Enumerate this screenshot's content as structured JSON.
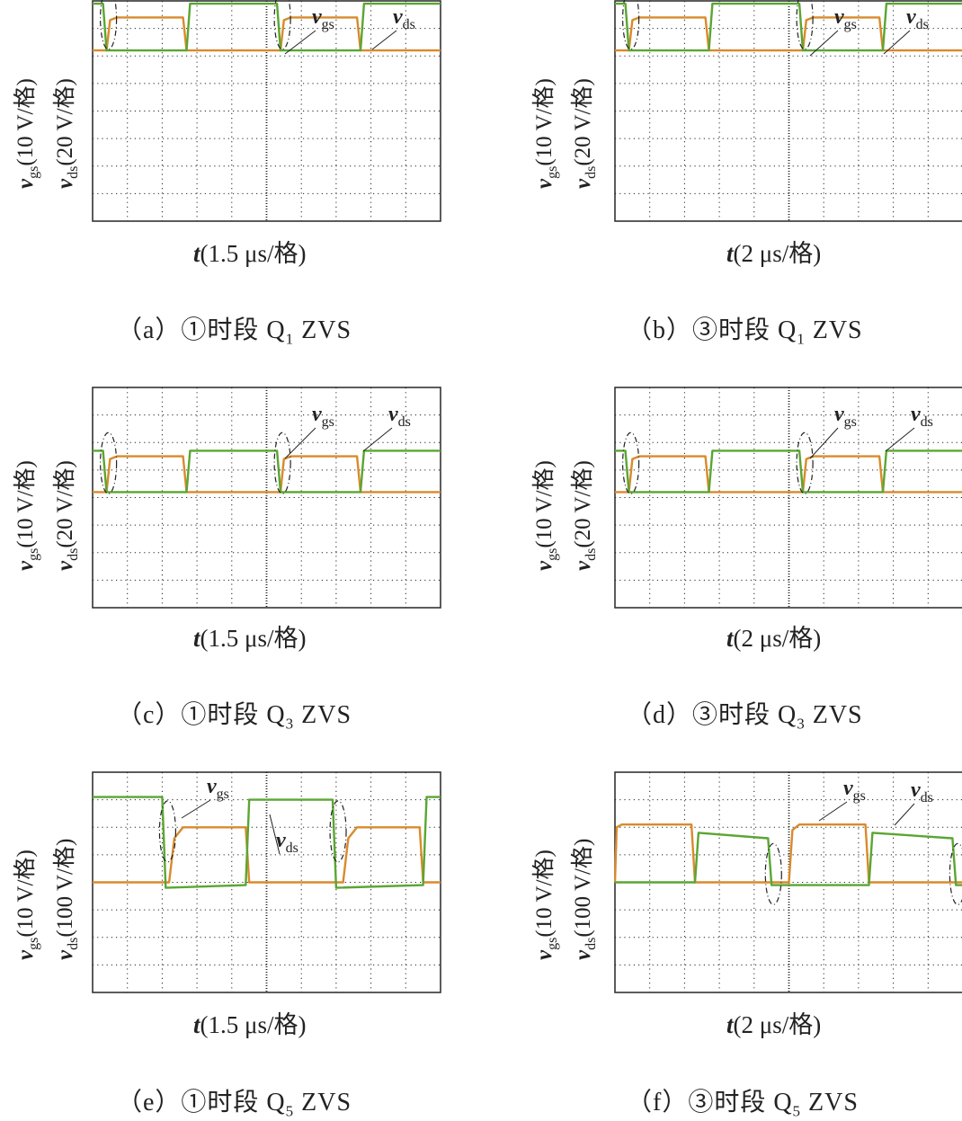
{
  "colors": {
    "vgs": "#d98a2b",
    "vds": "#5aa632",
    "grid": "#222222"
  },
  "labels": {
    "vgs_symbol": "v",
    "vgs_sub": "gs",
    "vds_symbol": "v",
    "vds_sub": "ds",
    "t_symbol": "t"
  },
  "panels": [
    {
      "id": "a",
      "caption_prefix": "（a）①时段 Q",
      "caption_sub": "1",
      "caption_suffix": " ZVS",
      "y1_unit": "(10 V/格)",
      "y2_unit": "(20 V/格)",
      "x_unit": "(1.5 μs/格)"
    },
    {
      "id": "b",
      "caption_prefix": "（b）③时段 Q",
      "caption_sub": "1",
      "caption_suffix": " ZVS",
      "y1_unit": "(10 V/格)",
      "y2_unit": "(20 V/格)",
      "x_unit": "(2 μs/格)"
    },
    {
      "id": "c",
      "caption_prefix": "（c）①时段 Q",
      "caption_sub": "3",
      "caption_suffix": " ZVS",
      "y1_unit": "(10 V/格)",
      "y2_unit": "(20 V/格)",
      "x_unit": "(1.5 μs/格)"
    },
    {
      "id": "d",
      "caption_prefix": "（d）③时段 Q",
      "caption_sub": "3",
      "caption_suffix": " ZVS",
      "y1_unit": "(10 V/格)",
      "y2_unit": "(20 V/格)",
      "x_unit": "(2 μs/格)"
    },
    {
      "id": "e",
      "caption_prefix": "（e）①时段 Q",
      "caption_sub": "5",
      "caption_suffix": " ZVS",
      "y1_unit": "(10 V/格)",
      "y2_unit": "(100 V/格)",
      "x_unit": "(1.5 μs/格)"
    },
    {
      "id": "f",
      "caption_prefix": "（f）③时段 Q",
      "caption_sub": "5",
      "caption_suffix": " ZVS",
      "y1_unit": "(10 V/格)",
      "y2_unit": "(100 V/格)",
      "x_unit": "(2 μs/格)"
    }
  ],
  "chart_data": [
    {
      "type": "line",
      "panel": "a",
      "x_divisions": 10,
      "y_divisions": 8,
      "series": [
        {
          "name": "vgs",
          "points": [
            [
              0,
              6.2
            ],
            [
              0.4,
              6.2
            ],
            [
              0.5,
              7.3
            ],
            [
              0.7,
              7.4
            ],
            [
              2.6,
              7.4
            ],
            [
              2.7,
              6.2
            ],
            [
              5.4,
              6.2
            ],
            [
              5.5,
              7.3
            ],
            [
              5.7,
              7.4
            ],
            [
              7.6,
              7.4
            ],
            [
              7.7,
              6.2
            ],
            [
              10,
              6.2
            ]
          ]
        },
        {
          "name": "vds",
          "points": [
            [
              0,
              7.9
            ],
            [
              0.3,
              7.9
            ],
            [
              0.4,
              6.2
            ],
            [
              2.7,
              6.2
            ],
            [
              2.8,
              7.9
            ],
            [
              5.3,
              7.9
            ],
            [
              5.4,
              6.2
            ],
            [
              7.7,
              6.2
            ],
            [
              7.8,
              7.9
            ],
            [
              10,
              7.9
            ]
          ]
        }
      ]
    },
    {
      "type": "line",
      "panel": "b",
      "x_divisions": 10,
      "y_divisions": 8,
      "series": [
        {
          "name": "vgs",
          "points": [
            [
              0,
              6.2
            ],
            [
              0.4,
              6.2
            ],
            [
              0.5,
              7.3
            ],
            [
              0.7,
              7.4
            ],
            [
              2.6,
              7.4
            ],
            [
              2.7,
              6.2
            ],
            [
              5.4,
              6.2
            ],
            [
              5.5,
              7.3
            ],
            [
              5.7,
              7.4
            ],
            [
              7.6,
              7.4
            ],
            [
              7.7,
              6.2
            ],
            [
              10,
              6.2
            ]
          ]
        },
        {
          "name": "vds",
          "points": [
            [
              0,
              7.9
            ],
            [
              0.3,
              7.9
            ],
            [
              0.4,
              6.2
            ],
            [
              2.7,
              6.2
            ],
            [
              2.8,
              7.9
            ],
            [
              5.3,
              7.9
            ],
            [
              5.4,
              6.2
            ],
            [
              7.7,
              6.2
            ],
            [
              7.8,
              7.9
            ],
            [
              10,
              7.9
            ]
          ]
        }
      ]
    },
    {
      "type": "line",
      "panel": "c",
      "x_divisions": 10,
      "y_divisions": 8,
      "series": [
        {
          "name": "vgs",
          "points": [
            [
              0,
              4.2
            ],
            [
              0.4,
              4.2
            ],
            [
              0.5,
              5.4
            ],
            [
              0.7,
              5.5
            ],
            [
              2.6,
              5.5
            ],
            [
              2.7,
              4.2
            ],
            [
              5.4,
              4.2
            ],
            [
              5.5,
              5.4
            ],
            [
              5.7,
              5.5
            ],
            [
              7.6,
              5.5
            ],
            [
              7.7,
              4.2
            ],
            [
              10,
              4.2
            ]
          ]
        },
        {
          "name": "vds",
          "points": [
            [
              0,
              5.7
            ],
            [
              0.3,
              5.7
            ],
            [
              0.4,
              4.2
            ],
            [
              2.7,
              4.2
            ],
            [
              2.8,
              5.7
            ],
            [
              5.3,
              5.7
            ],
            [
              5.4,
              4.2
            ],
            [
              7.7,
              4.2
            ],
            [
              7.8,
              5.7
            ],
            [
              10,
              5.7
            ]
          ]
        }
      ]
    },
    {
      "type": "line",
      "panel": "d",
      "x_divisions": 10,
      "y_divisions": 8,
      "series": [
        {
          "name": "vgs",
          "points": [
            [
              0,
              4.2
            ],
            [
              0.4,
              4.2
            ],
            [
              0.5,
              5.4
            ],
            [
              0.7,
              5.5
            ],
            [
              2.6,
              5.5
            ],
            [
              2.7,
              4.2
            ],
            [
              5.4,
              4.2
            ],
            [
              5.5,
              5.4
            ],
            [
              5.7,
              5.5
            ],
            [
              7.6,
              5.5
            ],
            [
              7.7,
              4.2
            ],
            [
              10,
              4.2
            ]
          ]
        },
        {
          "name": "vds",
          "points": [
            [
              0,
              5.7
            ],
            [
              0.3,
              5.7
            ],
            [
              0.4,
              4.2
            ],
            [
              2.7,
              4.2
            ],
            [
              2.8,
              5.7
            ],
            [
              5.3,
              5.7
            ],
            [
              5.4,
              4.2
            ],
            [
              7.7,
              4.2
            ],
            [
              7.8,
              5.7
            ],
            [
              10,
              5.7
            ]
          ]
        }
      ]
    },
    {
      "type": "line",
      "panel": "e",
      "x_divisions": 10,
      "y_divisions": 8,
      "series": [
        {
          "name": "vgs",
          "points": [
            [
              0,
              4.0
            ],
            [
              2.2,
              4.0
            ],
            [
              2.35,
              5.6
            ],
            [
              2.6,
              6.0
            ],
            [
              4.4,
              6.0
            ],
            [
              4.5,
              4.0
            ],
            [
              7.2,
              4.0
            ],
            [
              7.35,
              5.6
            ],
            [
              7.6,
              6.0
            ],
            [
              9.4,
              6.0
            ],
            [
              9.5,
              4.0
            ],
            [
              10,
              4.0
            ]
          ]
        },
        {
          "name": "vds",
          "points": [
            [
              0,
              7.1
            ],
            [
              2.0,
              7.1
            ],
            [
              2.1,
              3.8
            ],
            [
              4.4,
              3.9
            ],
            [
              4.5,
              7.0
            ],
            [
              6.9,
              7.0
            ],
            [
              7.0,
              3.8
            ],
            [
              9.5,
              3.9
            ],
            [
              9.6,
              7.1
            ],
            [
              10,
              7.1
            ]
          ]
        }
      ]
    },
    {
      "type": "line",
      "panel": "f",
      "x_divisions": 10,
      "y_divisions": 8,
      "series": [
        {
          "name": "vgs",
          "points": [
            [
              0,
              4.0
            ],
            [
              0.05,
              6.0
            ],
            [
              0.2,
              6.1
            ],
            [
              2.2,
              6.1
            ],
            [
              2.3,
              4.0
            ],
            [
              5.0,
              4.0
            ],
            [
              5.1,
              5.9
            ],
            [
              5.3,
              6.1
            ],
            [
              7.2,
              6.1
            ],
            [
              7.3,
              4.0
            ],
            [
              10,
              4.0
            ]
          ]
        },
        {
          "name": "vds",
          "points": [
            [
              0,
              4.0
            ],
            [
              2.3,
              4.0
            ],
            [
              2.4,
              5.8
            ],
            [
              4.4,
              5.6
            ],
            [
              4.5,
              3.9
            ],
            [
              7.3,
              3.9
            ],
            [
              7.4,
              5.8
            ],
            [
              9.7,
              5.6
            ],
            [
              9.8,
              3.9
            ],
            [
              10,
              3.9
            ]
          ]
        }
      ]
    }
  ]
}
